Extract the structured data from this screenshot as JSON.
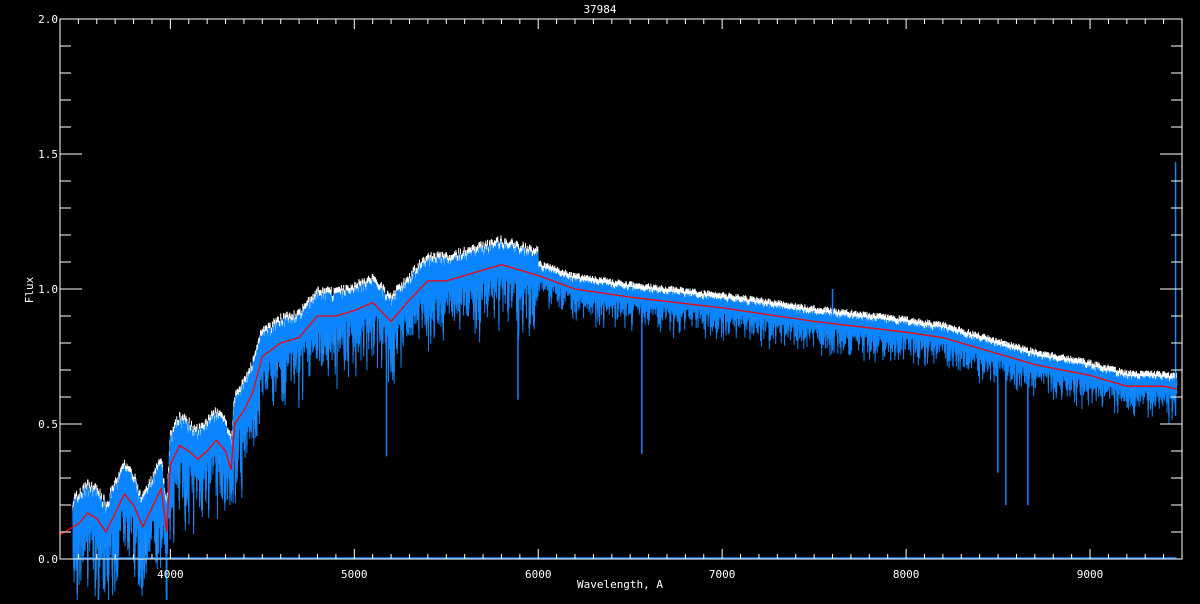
{
  "chart_data": {
    "type": "line",
    "title": "37984",
    "xlabel": "Wavelength, A",
    "ylabel": "Flux",
    "xlim": [
      3400,
      9500
    ],
    "ylim": [
      0.0,
      2.0
    ],
    "x_major_ticks": [
      4000,
      5000,
      6000,
      7000,
      8000,
      9000
    ],
    "x_minor_step": 100,
    "y_major_ticks": [
      "0.0",
      "0.5",
      "1.0",
      "1.5",
      "2.0"
    ],
    "y_minor_step": 0.1,
    "grid": false,
    "background": "#000000",
    "colors": {
      "observed": "#0a84ff",
      "model": "#ffffff",
      "smoothed": "#ff0000",
      "axes": "#ffffff"
    },
    "smoothed_curve": {
      "x": [
        3400,
        3500,
        3550,
        3600,
        3650,
        3700,
        3750,
        3800,
        3850,
        3900,
        3950,
        3980,
        4000,
        4050,
        4100,
        4150,
        4200,
        4250,
        4300,
        4330,
        4350,
        4400,
        4450,
        4500,
        4600,
        4700,
        4800,
        4900,
        5000,
        5100,
        5200,
        5300,
        5400,
        5500,
        5600,
        5700,
        5800,
        5900,
        6000,
        6200,
        6500,
        7000,
        7500,
        8000,
        8200,
        8500,
        8700,
        9000,
        9200,
        9400,
        9470
      ],
      "y": [
        0.09,
        0.13,
        0.17,
        0.15,
        0.1,
        0.17,
        0.24,
        0.2,
        0.12,
        0.19,
        0.26,
        0.1,
        0.35,
        0.42,
        0.4,
        0.37,
        0.4,
        0.44,
        0.4,
        0.33,
        0.5,
        0.55,
        0.62,
        0.75,
        0.8,
        0.82,
        0.9,
        0.9,
        0.92,
        0.95,
        0.88,
        0.96,
        1.03,
        1.03,
        1.05,
        1.07,
        1.09,
        1.07,
        1.05,
        1.0,
        0.97,
        0.93,
        0.88,
        0.84,
        0.82,
        0.76,
        0.72,
        0.68,
        0.64,
        0.64,
        0.63
      ]
    },
    "spectrum_range": [
      3470,
      9470
    ],
    "absorption_lines": [
      {
        "x": 3935,
        "y": 0.02
      },
      {
        "x": 4310,
        "y": 0.22
      },
      {
        "x": 5175,
        "y": 0.38
      },
      {
        "x": 5890,
        "y": 0.59
      },
      {
        "x": 6563,
        "y": 0.39
      },
      {
        "x": 8498,
        "y": 0.32
      },
      {
        "x": 8542,
        "y": 0.2
      },
      {
        "x": 8662,
        "y": 0.2
      }
    ],
    "emission_features": [
      {
        "x": 7600,
        "y": 1.0
      },
      {
        "x": 9465,
        "y": 1.47
      }
    ]
  }
}
